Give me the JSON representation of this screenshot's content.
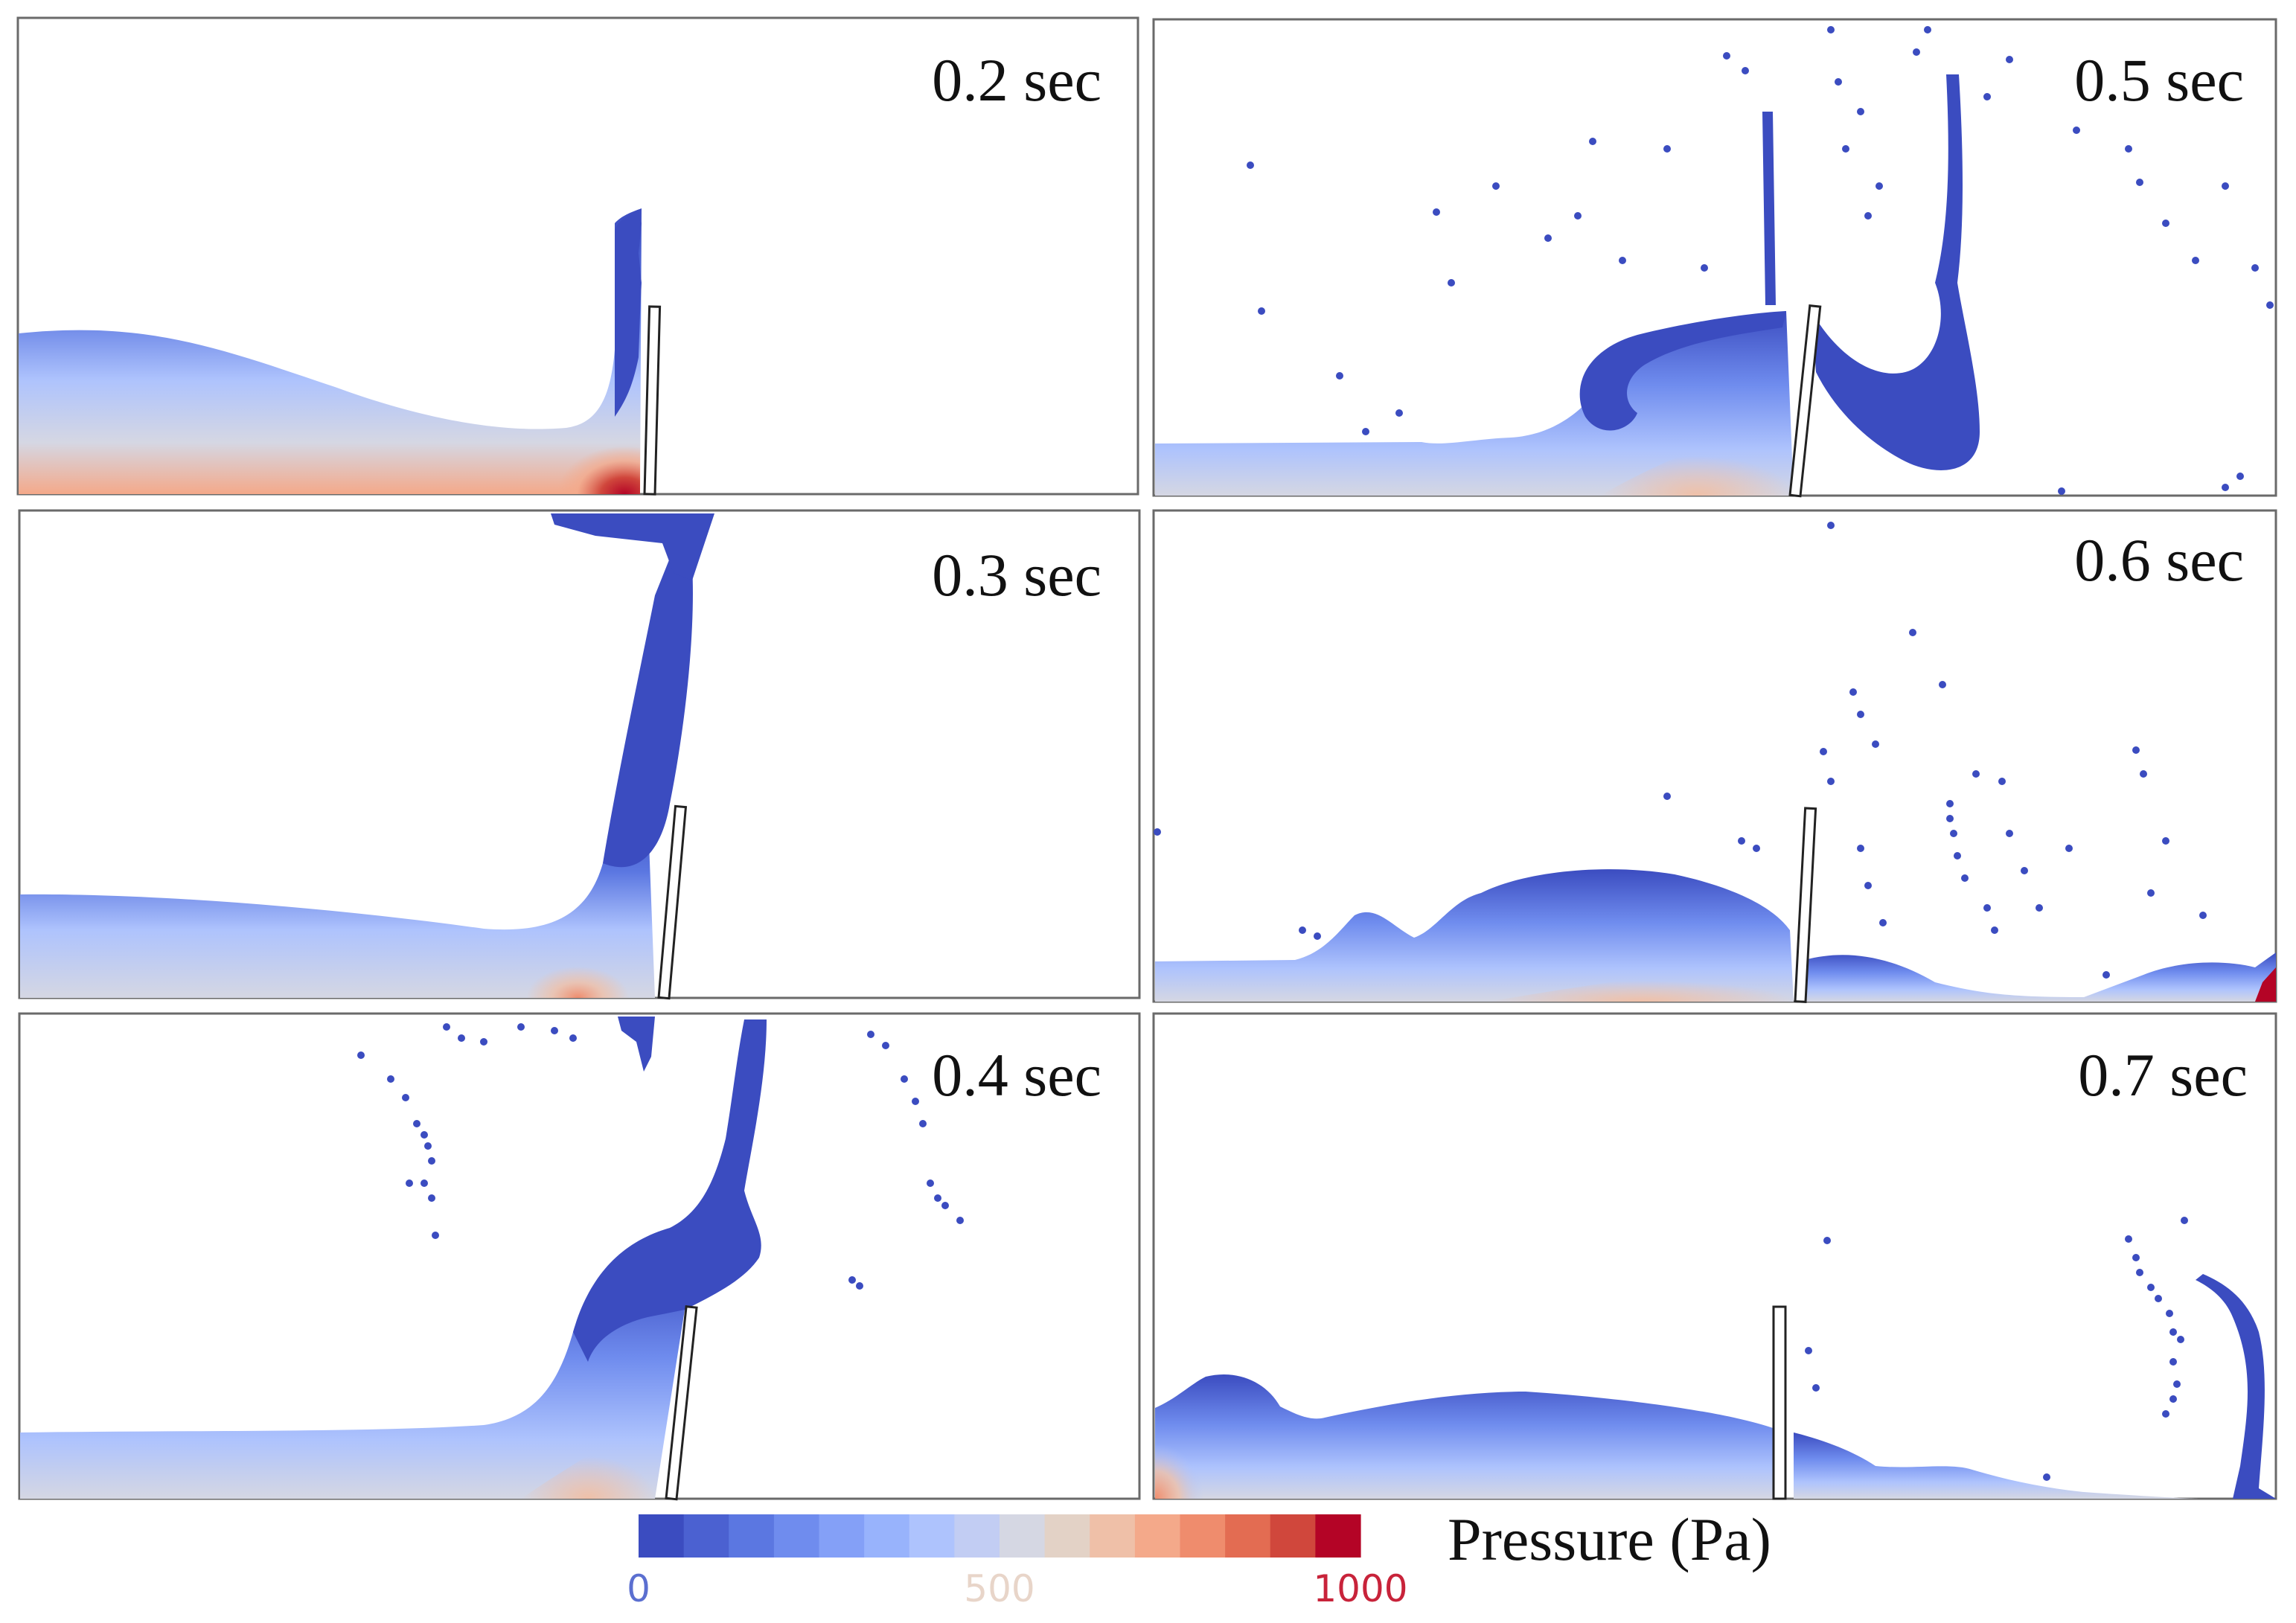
{
  "figure": {
    "panels": [
      {
        "id": "t02",
        "time_label": "0.2 sec"
      },
      {
        "id": "t05",
        "time_label": "0.5 sec"
      },
      {
        "id": "t03",
        "time_label": "0.3 sec"
      },
      {
        "id": "t06",
        "time_label": "0.6 sec"
      },
      {
        "id": "t04",
        "time_label": "0.4 sec"
      },
      {
        "id": "t07",
        "time_label": "0.7 sec"
      }
    ],
    "colorbar": {
      "title": "Pressure (Pa)",
      "min_label": "0",
      "mid_label": "500",
      "max_label": "1000",
      "min_label_color": "#5b6fd0",
      "mid_label_color": "#e8d5c9",
      "max_label_color": "#c8233a",
      "colors": [
        "#3b4cc0",
        "#4b61d1",
        "#5b77e1",
        "#6f8cee",
        "#84a0f7",
        "#98b3fc",
        "#aec3fd",
        "#c2cdf3",
        "#d5d7e3",
        "#e3d2c6",
        "#efc0a8",
        "#f4a98a",
        "#ef8c6d",
        "#e36c52",
        "#d0473c",
        "#b40426"
      ]
    },
    "fluid_colors": {
      "low_pressure": "#3b4cc0",
      "high_pressure": "#b40426"
    }
  }
}
